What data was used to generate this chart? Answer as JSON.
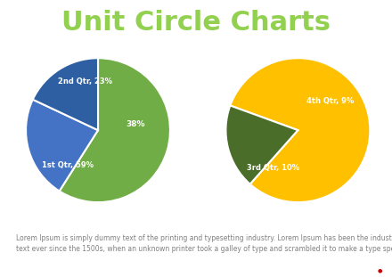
{
  "title": "Unit Circle Charts",
  "title_color": "#92d050",
  "title_fontsize": 22,
  "background_color": "#ffffff",
  "pie1_values": [
    59,
    23,
    18
  ],
  "pie1_colors": [
    "#70ad47",
    "#4472c4",
    "#2e5fa3"
  ],
  "pie1_startangle": 90,
  "pie2_values": [
    81,
    19
  ],
  "pie2_colors": [
    "#ffc000",
    "#4a6e2a"
  ],
  "pie2_startangle": 160,
  "footer_text": "Lorem Ipsum is simply dummy text of the printing and typesetting industry. Lorem Ipsum has been the industry's standard dummy\ntext ever since the 1500s, when an unknown printer took a galley of type and scrambled it to make a type specimen book.",
  "footer_fontsize": 5.5,
  "footer_color": "#808080",
  "red_dot_color": "#cc0000"
}
